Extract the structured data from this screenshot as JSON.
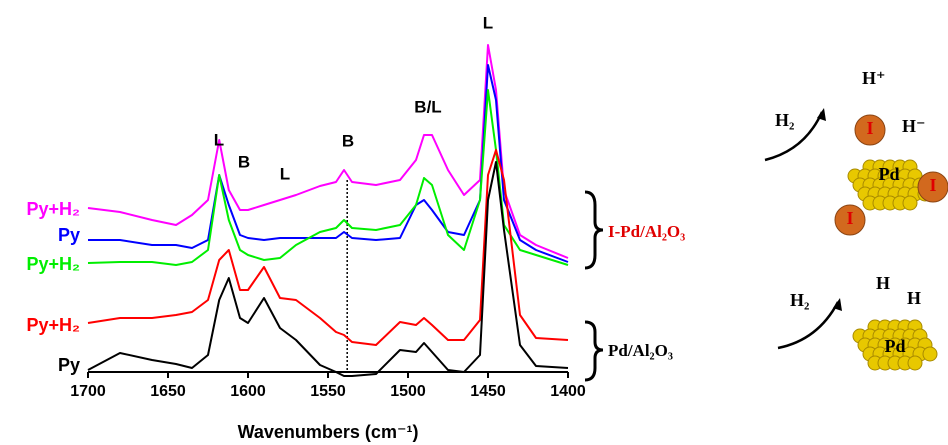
{
  "chart_data": {
    "type": "line",
    "x_label": "Wavenumbers (cm⁻¹)",
    "x": [
      1700,
      1680,
      1660,
      1645,
      1635,
      1625,
      1618,
      1612,
      1605,
      1600,
      1590,
      1580,
      1570,
      1555,
      1545,
      1540,
      1535,
      1520,
      1505,
      1495,
      1490,
      1485,
      1475,
      1465,
      1455,
      1450,
      1445,
      1440,
      1430,
      1420,
      1400
    ],
    "xlim": [
      1700,
      1400
    ],
    "xticks": [
      1700,
      1650,
      1600,
      1550,
      1500,
      1450,
      1400
    ],
    "ylim": [
      -10,
      350
    ],
    "vline": 1538,
    "series": [
      {
        "name": "Py+H₂",
        "color": "#ff00ff",
        "values": [
          164,
          160,
          152,
          147,
          157,
          172,
          232,
          182,
          162,
          162,
          167,
          172,
          177,
          186,
          190,
          202,
          190,
          187,
          192,
          212,
          237,
          237,
          202,
          177,
          192,
          327,
          282,
          182,
          137,
          127,
          114
        ]
      },
      {
        "name": "Py",
        "color": "#0000ff",
        "values": [
          132,
          132,
          127,
          127,
          124,
          132,
          197,
          167,
          137,
          134,
          132,
          134,
          134,
          134,
          134,
          140,
          134,
          132,
          134,
          167,
          172,
          162,
          140,
          137,
          172,
          307,
          272,
          172,
          132,
          122,
          110
        ]
      },
      {
        "name": "Py+H₂",
        "color": "#00ee00",
        "values": [
          109,
          110,
          110,
          107,
          110,
          122,
          197,
          152,
          122,
          117,
          112,
          114,
          127,
          140,
          144,
          152,
          144,
          142,
          147,
          167,
          194,
          187,
          137,
          122,
          172,
          282,
          222,
          147,
          122,
          117,
          107
        ]
      },
      {
        "name": "Py+H₂",
        "color": "#ff0000",
        "values": [
          49,
          54,
          54,
          57,
          60,
          72,
          112,
          122,
          82,
          82,
          105,
          74,
          72,
          54,
          40,
          37,
          30,
          27,
          50,
          47,
          54,
          47,
          32,
          32,
          52,
          197,
          222,
          192,
          57,
          34,
          32
        ]
      },
      {
        "name": "Py",
        "color": "#000000",
        "values": [
          2,
          19,
          12,
          8,
          4,
          17,
          72,
          94,
          54,
          49,
          74,
          44,
          32,
          7,
          0,
          -4,
          -4,
          -2,
          22,
          20,
          29,
          20,
          2,
          0,
          17,
          172,
          210,
          142,
          27,
          6,
          4
        ]
      }
    ],
    "annotations": [
      "B",
      "L",
      "L",
      "B",
      "B/L",
      "L"
    ],
    "groups": [
      "I-Pd/Al₂O₃",
      "Pd/Al₂O₃"
    ]
  },
  "schematic": {
    "top": {
      "h2": "H₂",
      "h_plus": "H⁺",
      "h_minus": "H⁻",
      "iodine": [
        "I",
        "I",
        "I"
      ],
      "pd": "Pd"
    },
    "bottom": {
      "h2": "H₂",
      "h_left": "H",
      "h_right": "H",
      "pd": "Pd"
    }
  }
}
